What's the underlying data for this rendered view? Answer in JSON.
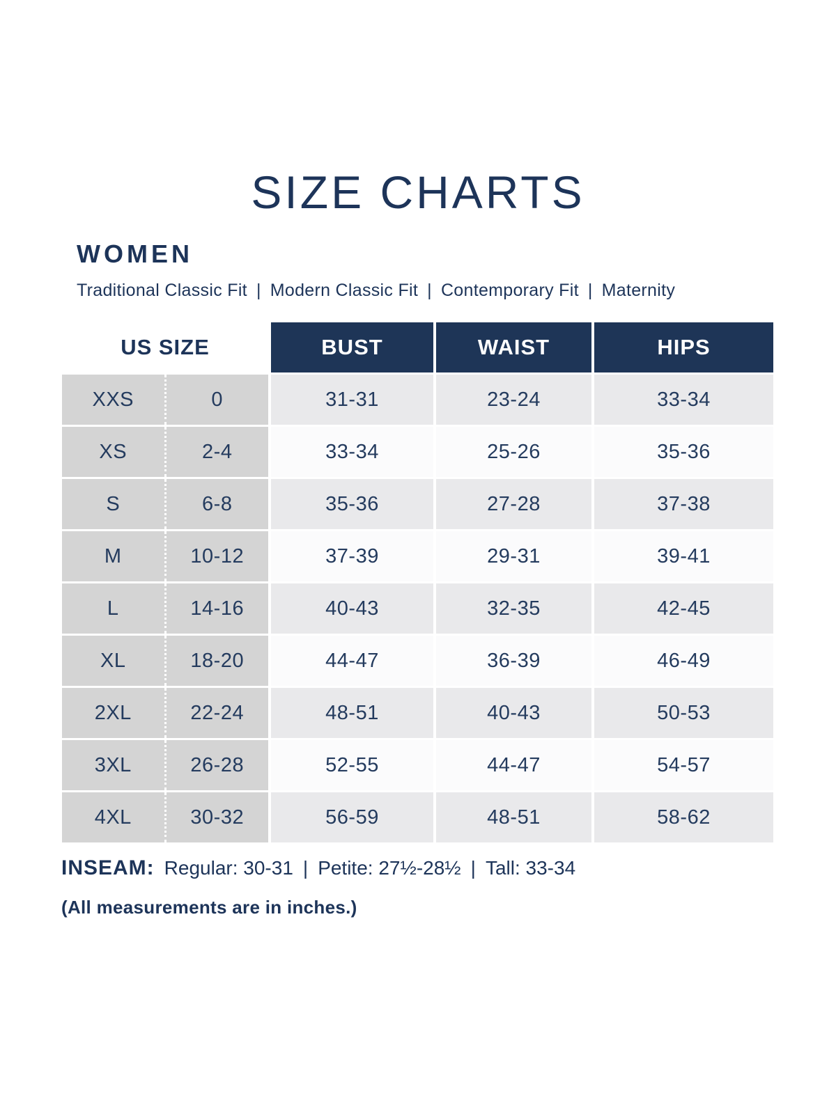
{
  "header": {
    "title": "SIZE CHARTS",
    "section": "WOMEN",
    "fits": [
      "Traditional Classic Fit",
      "Modern Classic Fit",
      "Contemporary Fit",
      "Maternity"
    ],
    "fit_separator": "|"
  },
  "table": {
    "headers": {
      "us_size": "US SIZE",
      "bust": "BUST",
      "waist": "WAIST",
      "hips": "HIPS"
    },
    "rows": [
      {
        "size": "XXS",
        "us": "0",
        "bust": "31-31",
        "waist": "23-24",
        "hips": "33-34"
      },
      {
        "size": "XS",
        "us": "2-4",
        "bust": "33-34",
        "waist": "25-26",
        "hips": "35-36"
      },
      {
        "size": "S",
        "us": "6-8",
        "bust": "35-36",
        "waist": "27-28",
        "hips": "37-38"
      },
      {
        "size": "M",
        "us": "10-12",
        "bust": "37-39",
        "waist": "29-31",
        "hips": "39-41"
      },
      {
        "size": "L",
        "us": "14-16",
        "bust": "40-43",
        "waist": "32-35",
        "hips": "42-45"
      },
      {
        "size": "XL",
        "us": "18-20",
        "bust": "44-47",
        "waist": "36-39",
        "hips": "46-49"
      },
      {
        "size": "2XL",
        "us": "22-24",
        "bust": "48-51",
        "waist": "40-43",
        "hips": "50-53"
      },
      {
        "size": "3XL",
        "us": "26-28",
        "bust": "52-55",
        "waist": "44-47",
        "hips": "54-57"
      },
      {
        "size": "4XL",
        "us": "30-32",
        "bust": "56-59",
        "waist": "48-51",
        "hips": "58-62"
      }
    ]
  },
  "inseam": {
    "label": "INSEAM:",
    "regular": "Regular: 30-31",
    "petite": "Petite: 27½-28½",
    "tall": "Tall: 33-34",
    "separator": "|"
  },
  "note": "(All measurements are in inches.)",
  "colors": {
    "navy_header": "#1e3557",
    "navy_text": "#1d3459",
    "cell_text": "#243b5e",
    "size_column_gray": "#d4d4d4",
    "metric_row_gray": "#e9e9eb",
    "metric_row_white": "#fbfbfc"
  }
}
